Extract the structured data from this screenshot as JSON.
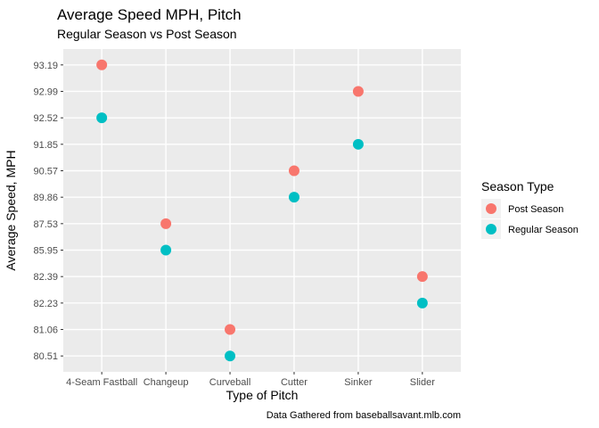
{
  "chart_data": {
    "type": "scatter",
    "title": "Average Speed MPH, Pitch",
    "subtitle": "Regular Season vs Post Season",
    "xlabel": "Type of Pitch",
    "ylabel": "Average Speed, MPH",
    "caption": "Data Gathered from baseballsavant.mlb.com",
    "categories": [
      "4-Seam Fastball",
      "Changeup",
      "Curveball",
      "Cutter",
      "Sinker",
      "Slider"
    ],
    "y_levels": [
      "80.51",
      "81.06",
      "82.23",
      "82.39",
      "85.95",
      "87.53",
      "89.86",
      "90.57",
      "91.85",
      "92.52",
      "92.99",
      "93.19"
    ],
    "y_scale": "discrete",
    "grid": true,
    "legend": {
      "title": "Season Type",
      "placement": "right"
    },
    "series": [
      {
        "name": "Post Season",
        "color": "#F8766D",
        "values": [
          "93.19",
          "87.53",
          "81.06",
          "90.57",
          "92.99",
          "82.39"
        ]
      },
      {
        "name": "Regular Season",
        "color": "#00BFC4",
        "values": [
          "92.52",
          "85.95",
          "80.51",
          "89.86",
          "91.85",
          "82.23"
        ]
      }
    ]
  }
}
